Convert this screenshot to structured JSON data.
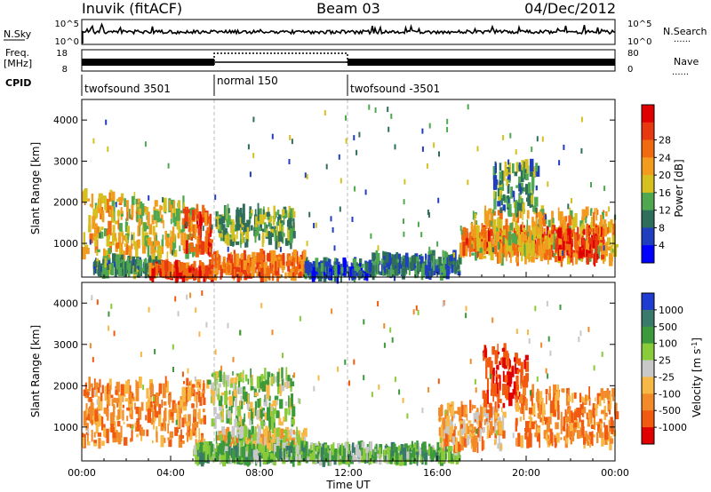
{
  "header": {
    "station": "Inuvik (fitACF)",
    "beam": "Beam 03",
    "date": "04/Dec/2012"
  },
  "labels": {
    "nsky": "N.Sky",
    "nsearch": "N.Search",
    "freq": "Freq.",
    "mhz": "[MHz]",
    "nave": "Nave",
    "cpid": "CPID",
    "sky_tick_hi": "10^5",
    "sky_tick_lo": "10^0",
    "search_tick_hi": "10^5",
    "search_tick_lo": "10^0",
    "freq_tick_hi": "18",
    "freq_tick_lo": "8",
    "nave_tick_hi": "80",
    "nave_tick_lo": "0",
    "dotted_line_symbol": "......"
  },
  "cpid_segments": [
    {
      "label": "twofsound 3501",
      "start": 0,
      "end": 6
    },
    {
      "label": "normal 150",
      "start": 6,
      "end": 12
    },
    {
      "label": "twofsound -3501",
      "start": 12,
      "end": 24
    }
  ],
  "chart_data": [
    {
      "type": "heatmap",
      "panel": "power",
      "xlabel": "Time UT",
      "ylabel": "Slant Range [km]",
      "xlim": [
        0,
        24
      ],
      "ylim": [
        180,
        4500
      ],
      "x_ticks": [
        "00:00",
        "04:00",
        "08:00",
        "12:00",
        "16:00",
        "20:00",
        "00:00"
      ],
      "y_ticks": [
        "1000",
        "2000",
        "3000",
        "4000"
      ],
      "colorbar": {
        "label": "Power [dB]",
        "ticks": [
          "4",
          "8",
          "12",
          "16",
          "20",
          "24",
          "28"
        ],
        "colors": [
          "#0000ff",
          "#1f3fbf",
          "#2f6e5a",
          "#4fa84f",
          "#d6c020",
          "#f39b1e",
          "#f06a10",
          "#e83810",
          "#e00000"
        ]
      },
      "scatter_regions": [
        {
          "t0": 0.0,
          "t1": 2.5,
          "r0": 600,
          "r1": 2200,
          "power": 18
        },
        {
          "t0": 0.5,
          "t1": 3.5,
          "r0": 300,
          "r1": 600,
          "power": 10
        },
        {
          "t0": 2.5,
          "t1": 5.0,
          "r0": 700,
          "r1": 2000,
          "power": 16
        },
        {
          "t0": 4.5,
          "t1": 5.8,
          "r0": 800,
          "r1": 1800,
          "power": 26
        },
        {
          "t0": 3.0,
          "t1": 6.0,
          "r0": 200,
          "r1": 450,
          "power": 27
        },
        {
          "t0": 5.8,
          "t1": 10.0,
          "r0": 200,
          "r1": 700,
          "power": 24
        },
        {
          "t0": 6.0,
          "t1": 9.5,
          "r0": 1000,
          "r1": 1800,
          "power": 12
        },
        {
          "t0": 10.0,
          "t1": 13.0,
          "r0": 200,
          "r1": 500,
          "power": 6
        },
        {
          "t0": 13.0,
          "t1": 17.0,
          "r0": 250,
          "r1": 700,
          "power": 8
        },
        {
          "t0": 17.0,
          "t1": 21.0,
          "r0": 800,
          "r1": 1300,
          "power": 26
        },
        {
          "t0": 17.5,
          "t1": 24.0,
          "r0": 600,
          "r1": 1800,
          "power": 18
        },
        {
          "t0": 18.5,
          "t1": 20.5,
          "r0": 1800,
          "r1": 2900,
          "power": 10
        },
        {
          "t0": 21.0,
          "t1": 23.5,
          "r0": 600,
          "r1": 1400,
          "power": 27
        }
      ]
    },
    {
      "type": "heatmap",
      "panel": "velocity",
      "xlabel": "Time UT",
      "ylabel": "Slant Range [km]",
      "xlim": [
        0,
        24
      ],
      "ylim": [
        180,
        4500
      ],
      "x_ticks": [
        "00:00",
        "04:00",
        "08:00",
        "12:00",
        "16:00",
        "20:00",
        "00:00"
      ],
      "y_ticks": [
        "1000",
        "2000",
        "3000",
        "4000"
      ],
      "colorbar": {
        "label": "Velocity [m s^-1]",
        "ticks": [
          "1000",
          "500",
          "100",
          "25",
          "-25",
          "-100",
          "-500",
          "-1000"
        ],
        "colors": [
          "#1e3cd2",
          "#3a7a6a",
          "#3c9a3c",
          "#8acb3a",
          "#c8c8c8",
          "#f7b845",
          "#f28a2a",
          "#f25a10",
          "#e00000"
        ]
      },
      "scatter_regions": [
        {
          "t0": 0.0,
          "t1": 5.5,
          "r0": 600,
          "r1": 2100,
          "velocity": -300
        },
        {
          "t0": 5.5,
          "t1": 9.5,
          "r0": 1000,
          "r1": 2300,
          "velocity": 80
        },
        {
          "t0": 6.0,
          "t1": 10.0,
          "r0": 400,
          "r1": 900,
          "velocity": 0
        },
        {
          "t0": 5.0,
          "t1": 17.0,
          "r0": 200,
          "r1": 500,
          "velocity": 200
        },
        {
          "t0": 16.0,
          "t1": 19.0,
          "r0": 500,
          "r1": 1500,
          "velocity": -200
        },
        {
          "t0": 18.0,
          "t1": 20.0,
          "r0": 1500,
          "r1": 2900,
          "velocity": -700
        },
        {
          "t0": 19.5,
          "t1": 24.0,
          "r0": 600,
          "r1": 1900,
          "velocity": -300
        }
      ]
    }
  ],
  "colors": {
    "axis": "#000000",
    "guide_line": "#bbbbbb"
  }
}
